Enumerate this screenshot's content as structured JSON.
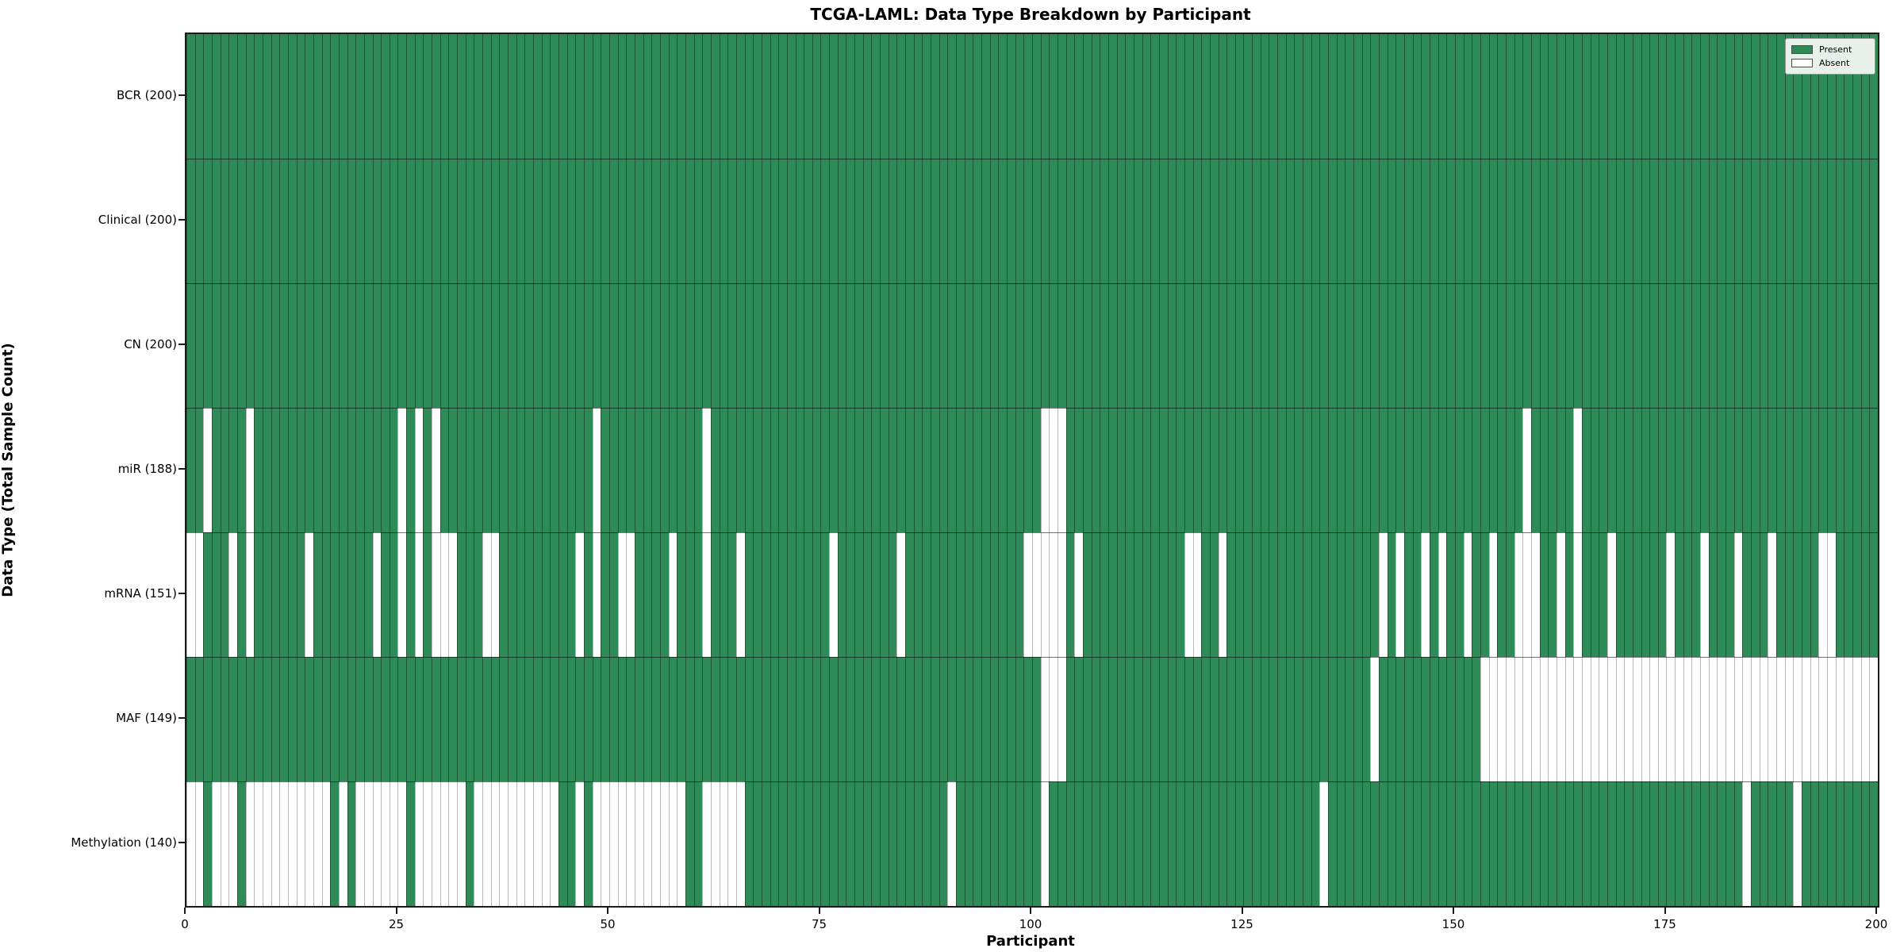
{
  "title": "TCGA-LAML: Data Type Breakdown by Participant",
  "xlabel": "Participant",
  "ylabel": "Data Type (Total Sample Count)",
  "colors": {
    "present": "#2e8b57",
    "absent": "#ffffff",
    "grid_line": "rgba(0,0,0,0.38)",
    "legend_background": "#e9efe9"
  },
  "chart_data": {
    "type": "heatmap",
    "title": "TCGA-LAML: Data Type Breakdown by Participant",
    "xlabel": "Participant",
    "ylabel": "Data Type (Total Sample Count)",
    "n_participants": 200,
    "x_ticks": [
      0,
      25,
      50,
      75,
      100,
      125,
      150,
      175,
      200
    ],
    "legend": [
      {
        "label": "Present",
        "color": "#2e8b57"
      },
      {
        "label": "Absent",
        "color": "#ffffff"
      }
    ],
    "value_encoding": {
      "present": 1,
      "absent": 0
    },
    "rows": [
      {
        "label": "BCR (200)",
        "data_type": "BCR",
        "present_count": 200,
        "absent_participants": []
      },
      {
        "label": "Clinical (200)",
        "data_type": "Clinical",
        "present_count": 200,
        "absent_participants": []
      },
      {
        "label": "CN (200)",
        "data_type": "CN",
        "present_count": 200,
        "absent_participants": []
      },
      {
        "label": "miR (188)",
        "data_type": "miR",
        "present_count": 188,
        "absent_participants": [
          2,
          7,
          25,
          27,
          29,
          48,
          61,
          101,
          102,
          103,
          158,
          164
        ]
      },
      {
        "label": "mRNA (151)",
        "data_type": "mRNA",
        "present_count": 151,
        "absent_participants": [
          0,
          1,
          5,
          7,
          14,
          22,
          25,
          27,
          29,
          30,
          31,
          35,
          36,
          46,
          48,
          51,
          52,
          57,
          61,
          65,
          76,
          84,
          99,
          100,
          101,
          102,
          103,
          105,
          118,
          119,
          122,
          141,
          143,
          146,
          148,
          151,
          154,
          157,
          158,
          159,
          162,
          164,
          168,
          175,
          179,
          183,
          187,
          193,
          194
        ]
      },
      {
        "label": "MAF (149)",
        "data_type": "MAF",
        "present_count": 149,
        "absent_participants": [
          101,
          102,
          103,
          140,
          153,
          154,
          155,
          156,
          157,
          158,
          159,
          160,
          161,
          162,
          163,
          164,
          165,
          166,
          167,
          168,
          169,
          170,
          171,
          172,
          173,
          174,
          175,
          176,
          177,
          178,
          179,
          180,
          181,
          182,
          183,
          184,
          185,
          186,
          187,
          188,
          189,
          190,
          191,
          192,
          193,
          194,
          195,
          196,
          197,
          198,
          199
        ]
      },
      {
        "label": "Methylation (140)",
        "data_type": "Methylation",
        "present_count": 140,
        "absent_participants": [
          0,
          1,
          3,
          4,
          5,
          7,
          8,
          9,
          10,
          11,
          12,
          13,
          14,
          15,
          16,
          18,
          20,
          21,
          22,
          23,
          24,
          25,
          27,
          28,
          29,
          30,
          31,
          32,
          34,
          35,
          36,
          37,
          38,
          39,
          40,
          41,
          42,
          43,
          46,
          48,
          49,
          50,
          51,
          52,
          53,
          54,
          55,
          56,
          57,
          58,
          61,
          62,
          63,
          64,
          65,
          90,
          101,
          134,
          184,
          190
        ]
      }
    ]
  }
}
